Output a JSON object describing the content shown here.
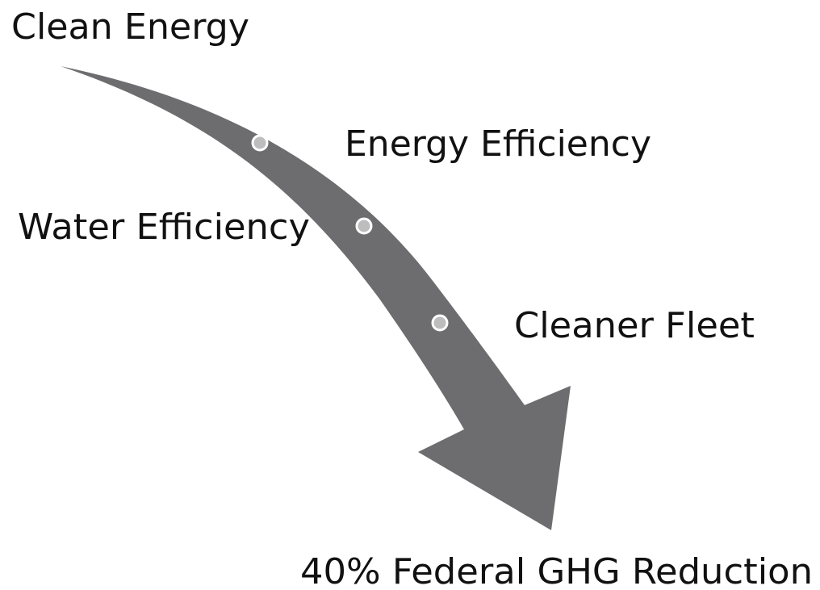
{
  "nodes": [
    {
      "label": "Clean Energy"
    },
    {
      "label": "Energy Efficiency"
    },
    {
      "label": "Water Efficiency"
    },
    {
      "label": "Cleaner Fleet"
    },
    {
      "label": "40% Federal GHG Reduction"
    }
  ]
}
